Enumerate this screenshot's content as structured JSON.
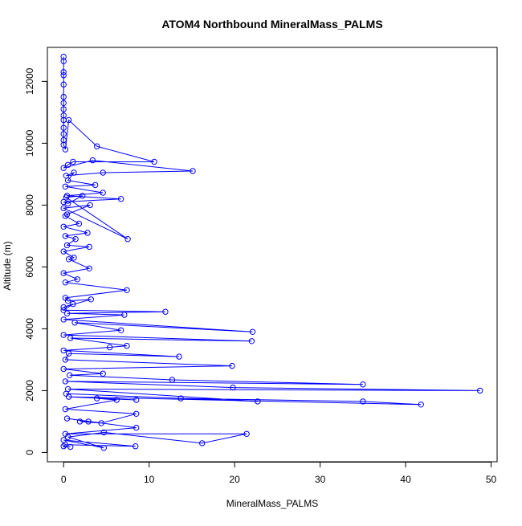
{
  "chart_data": {
    "type": "line",
    "title": "ATOM4 Northbound MineralMass_PALMS",
    "xlabel": "MineralMass_PALMS",
    "ylabel": "Altitude (m)",
    "xlim": [
      -1.9,
      50.7
    ],
    "ylim": [
      -300,
      13100
    ],
    "x_ticks": [
      0,
      10,
      20,
      30,
      40,
      50
    ],
    "y_ticks": [
      0,
      2000,
      4000,
      6000,
      8000,
      10000,
      12000
    ],
    "grid": false,
    "legend": "none",
    "series": [
      {
        "color": "#0000ff",
        "marker": "open-circle",
        "points": [
          [
            0.0,
            12800
          ],
          [
            0.0,
            12650
          ],
          [
            0.0,
            12300
          ],
          [
            0.0,
            12200
          ],
          [
            0.0,
            11900
          ],
          [
            0.0,
            11500
          ],
          [
            0.0,
            11300
          ],
          [
            0.0,
            11100
          ],
          [
            0.0,
            10900
          ],
          [
            0.0,
            10750
          ],
          [
            0.0,
            10500
          ],
          [
            0.0,
            10300
          ],
          [
            0.0,
            10100
          ],
          [
            0.0,
            9950
          ],
          [
            0.2,
            9800
          ],
          [
            0.6,
            10750
          ],
          [
            3.9,
            9900
          ],
          [
            10.6,
            9400
          ],
          [
            1.1,
            9400
          ],
          [
            0.5,
            9300
          ],
          [
            0.0,
            9200
          ],
          [
            3.4,
            9450
          ],
          [
            15.1,
            9100
          ],
          [
            4.6,
            9050
          ],
          [
            0.3,
            8950
          ],
          [
            1.2,
            9050
          ],
          [
            0.5,
            8800
          ],
          [
            3.7,
            8650
          ],
          [
            0.2,
            8600
          ],
          [
            4.6,
            8400
          ],
          [
            0.4,
            8300
          ],
          [
            6.7,
            8200
          ],
          [
            0.0,
            8100
          ],
          [
            0.5,
            8050
          ],
          [
            2.2,
            8300
          ],
          [
            0.3,
            8250
          ],
          [
            7.5,
            6900
          ],
          [
            0.0,
            7900
          ],
          [
            3.1,
            8000
          ],
          [
            0.4,
            7700
          ],
          [
            0.2,
            7650
          ],
          [
            1.8,
            7400
          ],
          [
            0.0,
            7300
          ],
          [
            2.8,
            7100
          ],
          [
            0.2,
            7000
          ],
          [
            1.4,
            6900
          ],
          [
            0.4,
            6700
          ],
          [
            3.0,
            6650
          ],
          [
            0.0,
            6500
          ],
          [
            1.2,
            6300
          ],
          [
            0.6,
            6250
          ],
          [
            3.0,
            5950
          ],
          [
            0.0,
            5800
          ],
          [
            1.6,
            5600
          ],
          [
            0.2,
            5500
          ],
          [
            7.4,
            5250
          ],
          [
            0.2,
            5000
          ],
          [
            0.5,
            4900
          ],
          [
            3.2,
            4950
          ],
          [
            0.0,
            4700
          ],
          [
            1.1,
            4800
          ],
          [
            0.0,
            4600
          ],
          [
            11.9,
            4550
          ],
          [
            0.4,
            4500
          ],
          [
            7.1,
            4450
          ],
          [
            0.0,
            4300
          ],
          [
            22.1,
            3900
          ],
          [
            1.3,
            4200
          ],
          [
            6.7,
            3950
          ],
          [
            0.0,
            3800
          ],
          [
            22.0,
            3600
          ],
          [
            0.8,
            3700
          ],
          [
            7.4,
            3450
          ],
          [
            5.4,
            3400
          ],
          [
            0.0,
            3300
          ],
          [
            13.5,
            3100
          ],
          [
            0.6,
            3200
          ],
          [
            0.2,
            3000
          ],
          [
            19.7,
            2800
          ],
          [
            0.0,
            2700
          ],
          [
            4.6,
            2550
          ],
          [
            0.7,
            2500
          ],
          [
            12.7,
            2350
          ],
          [
            35.0,
            2200
          ],
          [
            0.2,
            2300
          ],
          [
            19.8,
            2100
          ],
          [
            48.7,
            2000
          ],
          [
            0.5,
            2050
          ],
          [
            22.7,
            1650
          ],
          [
            0.3,
            1900
          ],
          [
            13.7,
            1750
          ],
          [
            35.0,
            1650
          ],
          [
            41.8,
            1550
          ],
          [
            0.6,
            1800
          ],
          [
            8.5,
            1700
          ],
          [
            3.9,
            1750
          ],
          [
            6.2,
            1700
          ],
          [
            0.2,
            1400
          ],
          [
            8.5,
            1250
          ],
          [
            4.4,
            950
          ],
          [
            1.9,
            1000
          ],
          [
            2.9,
            1000
          ],
          [
            0.4,
            1100
          ],
          [
            8.5,
            800
          ],
          [
            0.2,
            600
          ],
          [
            21.4,
            600
          ],
          [
            16.2,
            300
          ],
          [
            4.7,
            650
          ],
          [
            0.5,
            500
          ],
          [
            4.7,
            150
          ],
          [
            0.0,
            400
          ],
          [
            8.4,
            200
          ],
          [
            0.2,
            250
          ],
          [
            0.0,
            200
          ],
          [
            0.8,
            180
          ]
        ]
      }
    ]
  }
}
